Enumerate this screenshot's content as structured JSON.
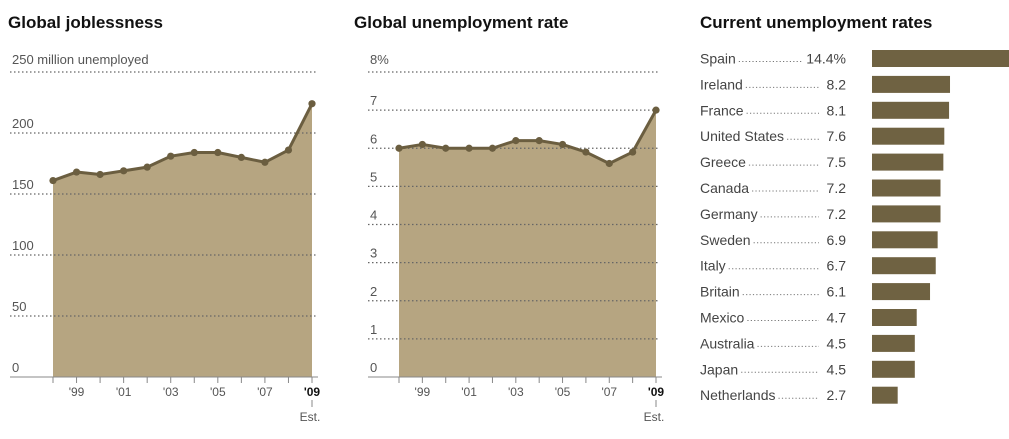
{
  "colors": {
    "area_fill": "#b6a581",
    "line": "#6b5e40",
    "bar": "#6f6242",
    "grid": "#666666",
    "axis": "#888888"
  },
  "chart_data": [
    {
      "type": "area",
      "title": "Global joblessness",
      "ylabel": "250 million unemployed",
      "ylim": [
        0,
        250
      ],
      "y_ticks": [
        "0",
        "50",
        "100",
        "150",
        "200"
      ],
      "x": [
        1998,
        1999,
        2000,
        2001,
        2002,
        2003,
        2004,
        2005,
        2006,
        2007,
        2008,
        2009
      ],
      "values": [
        161,
        168,
        166,
        169,
        172,
        181,
        184,
        184,
        180,
        176,
        186,
        224
      ],
      "x_tick_labels": [
        "'99",
        "'01",
        "'03",
        "'05",
        "'07",
        "'09"
      ],
      "est_label": "Est.",
      "grid": true
    },
    {
      "type": "area",
      "title": "Global unemployment rate",
      "ylabel": "8%",
      "ylim": [
        0,
        8
      ],
      "y_ticks": [
        "0",
        "1",
        "2",
        "3",
        "4",
        "5",
        "6",
        "7"
      ],
      "x": [
        1998,
        1999,
        2000,
        2001,
        2002,
        2003,
        2004,
        2005,
        2006,
        2007,
        2008,
        2009
      ],
      "values": [
        6.0,
        6.1,
        6.0,
        6.0,
        6.0,
        6.2,
        6.2,
        6.1,
        5.9,
        5.6,
        5.9,
        7.0
      ],
      "x_tick_labels": [
        "'99",
        "'01",
        "'03",
        "'05",
        "'07",
        "'09"
      ],
      "est_label": "Est.",
      "grid": true
    },
    {
      "type": "bar",
      "title": "Current unemployment rates",
      "categories": [
        "Spain",
        "Ireland",
        "France",
        "United States",
        "Greece",
        "Canada",
        "Germany",
        "Sweden",
        "Italy",
        "Britain",
        "Mexico",
        "Australia",
        "Japan",
        "Netherlands"
      ],
      "values": [
        14.4,
        8.2,
        8.1,
        7.6,
        7.5,
        7.2,
        7.2,
        6.9,
        6.7,
        6.1,
        4.7,
        4.5,
        4.5,
        2.7
      ],
      "value_labels": [
        "14.4%",
        "8.2",
        "8.1",
        "7.6",
        "7.5",
        "7.2",
        "7.2",
        "6.9",
        "6.7",
        "6.1",
        "4.7",
        "4.5",
        "4.5",
        "2.7"
      ],
      "xlim": [
        0,
        14.4
      ]
    }
  ]
}
